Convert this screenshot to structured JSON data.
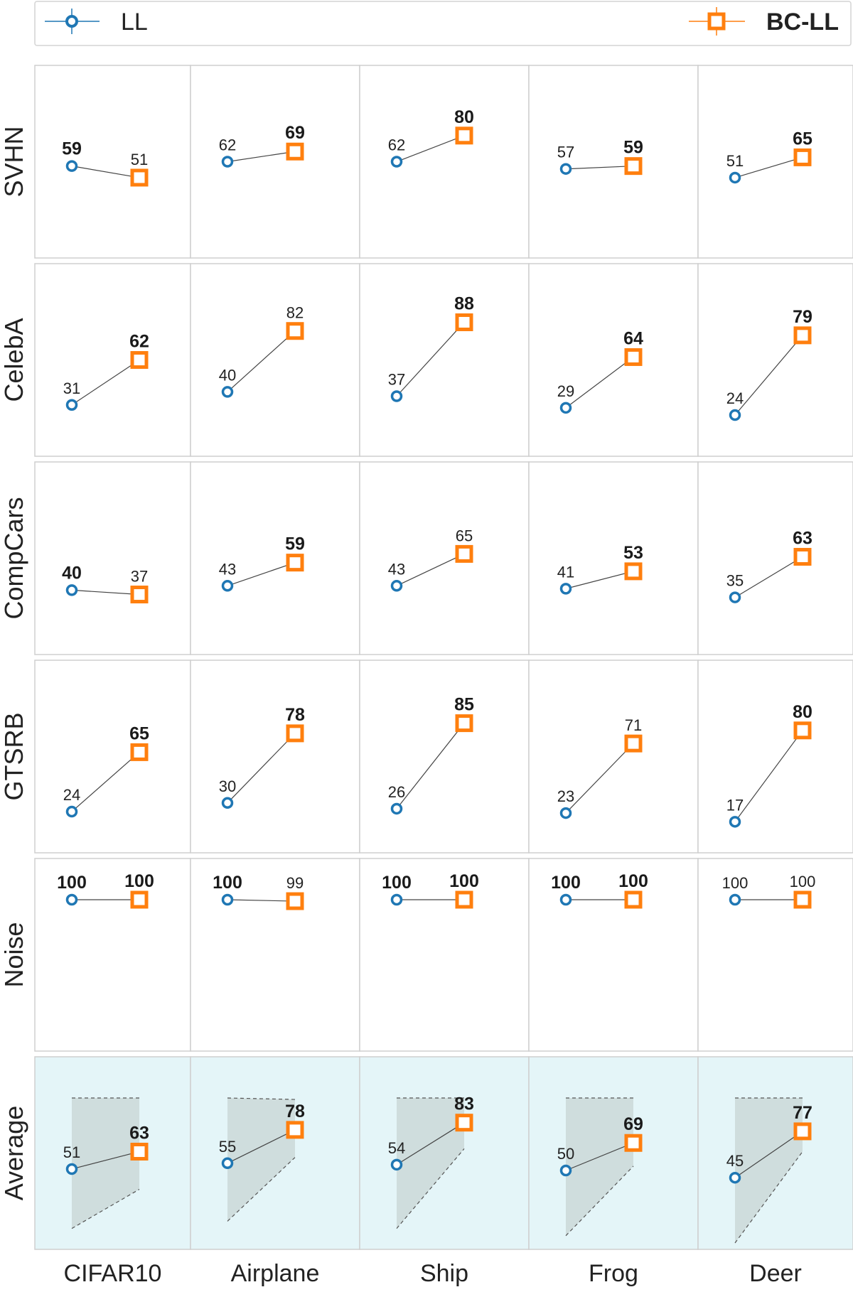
{
  "legend": {
    "ll_label": "LL",
    "bcll_label": "BC-LL"
  },
  "colors": {
    "ll": "#1f77b4",
    "bcll": "#ff7f0e",
    "average_bg": "#e4f5f8",
    "band": "#c8d4d4",
    "panel_border": "#cfcfcf",
    "connector": "#444444"
  },
  "chart_data": {
    "type": "line",
    "series": [
      {
        "name": "LL"
      },
      {
        "name": "BC-LL"
      }
    ],
    "columns": [
      "CIFAR10",
      "Airplane",
      "Ship",
      "Frog",
      "Deer"
    ],
    "rows": [
      "SVHN",
      "CelebA",
      "CompCars",
      "GTSRB",
      "Noise",
      "Average"
    ],
    "ylim": [
      0,
      100
    ],
    "grid": false,
    "legend_position": "top",
    "cells": [
      [
        {
          "ll": 59,
          "bcll": 51,
          "bold": "ll"
        },
        {
          "ll": 62,
          "bcll": 69,
          "bold": "bcll"
        },
        {
          "ll": 62,
          "bcll": 80,
          "bold": "bcll"
        },
        {
          "ll": 57,
          "bcll": 59,
          "bold": "bcll"
        },
        {
          "ll": 51,
          "bcll": 65,
          "bold": "bcll"
        }
      ],
      [
        {
          "ll": 31,
          "bcll": 62,
          "bold": "bcll"
        },
        {
          "ll": 40,
          "bcll": 82,
          "bold": "none"
        },
        {
          "ll": 37,
          "bcll": 88,
          "bold": "bcll"
        },
        {
          "ll": 29,
          "bcll": 64,
          "bold": "bcll"
        },
        {
          "ll": 24,
          "bcll": 79,
          "bold": "bcll"
        }
      ],
      [
        {
          "ll": 40,
          "bcll": 37,
          "bold": "ll"
        },
        {
          "ll": 43,
          "bcll": 59,
          "bold": "bcll"
        },
        {
          "ll": 43,
          "bcll": 65,
          "bold": "none"
        },
        {
          "ll": 41,
          "bcll": 53,
          "bold": "bcll"
        },
        {
          "ll": 35,
          "bcll": 63,
          "bold": "bcll"
        }
      ],
      [
        {
          "ll": 24,
          "bcll": 65,
          "bold": "bcll"
        },
        {
          "ll": 30,
          "bcll": 78,
          "bold": "bcll"
        },
        {
          "ll": 26,
          "bcll": 85,
          "bold": "bcll"
        },
        {
          "ll": 23,
          "bcll": 71,
          "bold": "none"
        },
        {
          "ll": 17,
          "bcll": 80,
          "bold": "bcll"
        }
      ],
      [
        {
          "ll": 100,
          "bcll": 100,
          "bold": "both"
        },
        {
          "ll": 100,
          "bcll": 99,
          "bold": "ll"
        },
        {
          "ll": 100,
          "bcll": 100,
          "bold": "both"
        },
        {
          "ll": 100,
          "bcll": 100,
          "bold": "both"
        },
        {
          "ll": 100,
          "bcll": 100,
          "bold": "none"
        }
      ],
      [
        {
          "ll": 51,
          "bcll": 63,
          "bold": "bcll",
          "ll_range": [
            10,
            100
          ],
          "bcll_range": [
            37,
            100
          ]
        },
        {
          "ll": 55,
          "bcll": 78,
          "bold": "bcll",
          "ll_range": [
            15,
            100
          ],
          "bcll_range": [
            59,
            99
          ]
        },
        {
          "ll": 54,
          "bcll": 83,
          "bold": "bcll",
          "ll_range": [
            10,
            100
          ],
          "bcll_range": [
            65,
            100
          ]
        },
        {
          "ll": 50,
          "bcll": 69,
          "bold": "bcll",
          "ll_range": [
            5,
            100
          ],
          "bcll_range": [
            53,
            100
          ]
        },
        {
          "ll": 45,
          "bcll": 77,
          "bold": "bcll",
          "ll_range": [
            0,
            100
          ],
          "bcll_range": [
            63,
            100
          ]
        }
      ]
    ]
  }
}
